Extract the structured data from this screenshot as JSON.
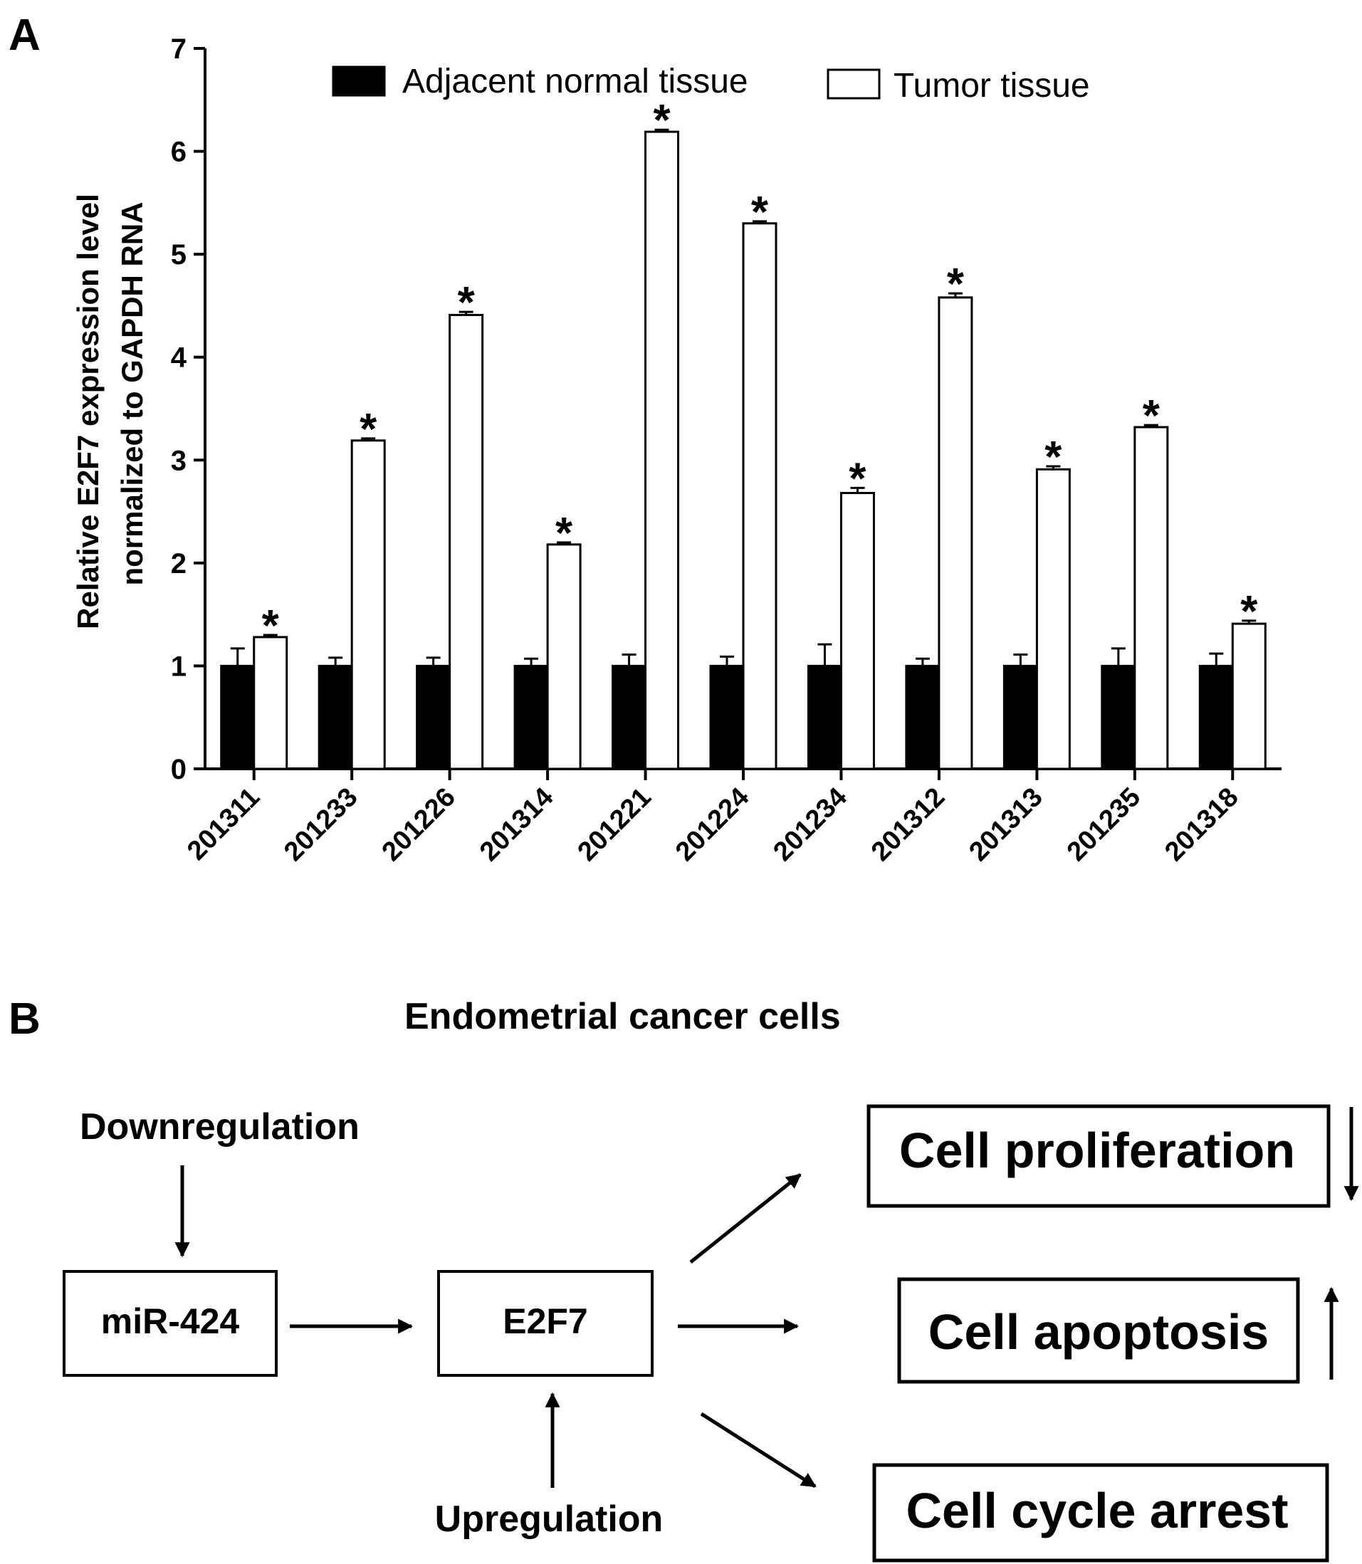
{
  "panel_a": {
    "label": "A",
    "ylabel_line1": "Relative E2F7 expression level",
    "ylabel_line2": "normalized to GAPDH RNA",
    "yticks": [
      "0",
      "1",
      "2",
      "3",
      "4",
      "5",
      "6",
      "7"
    ],
    "legend": [
      {
        "label": "Adjacent normal tissue",
        "fill": "#000000"
      },
      {
        "label": "Tumor tissue",
        "fill": "#ffffff"
      }
    ],
    "significance_mark": "*"
  },
  "chart_data": {
    "type": "bar",
    "ylim": [
      0,
      7
    ],
    "grid": false,
    "legend_position": "top",
    "categories": [
      "201311",
      "201233",
      "201226",
      "201314",
      "201221",
      "201224",
      "201234",
      "201312",
      "201313",
      "201235",
      "201318"
    ],
    "series": [
      {
        "name": "Adjacent normal tissue",
        "color": "#000000",
        "values": [
          1,
          1,
          1,
          1,
          1,
          1,
          1,
          1,
          1,
          1,
          1
        ],
        "errors": [
          0.17,
          0.08,
          0.08,
          0.07,
          0.11,
          0.09,
          0.21,
          0.07,
          0.11,
          0.17,
          0.12
        ]
      },
      {
        "name": "Tumor tissue",
        "color": "#ffffff",
        "values": [
          1.28,
          3.19,
          4.41,
          2.18,
          6.19,
          5.3,
          2.68,
          4.58,
          2.91,
          3.32,
          1.41
        ],
        "errors": [
          0.02,
          0.02,
          0.03,
          0.02,
          0.02,
          0.02,
          0.05,
          0.04,
          0.03,
          0.02,
          0.03
        ]
      }
    ],
    "annotations": [
      "*",
      "*",
      "*",
      "*",
      "*",
      "*",
      "*",
      "*",
      "*",
      "*",
      "*"
    ]
  },
  "panel_b": {
    "label": "B",
    "title": "Endometrial cancer cells",
    "downregulation": "Downregulation",
    "upregulation": "Upregulation",
    "mir_box": "miR-424",
    "e2f7_box": "E2F7",
    "outcomes": [
      {
        "label": "Cell proliferation",
        "direction": "down"
      },
      {
        "label": "Cell apoptosis",
        "direction": "up"
      },
      {
        "label": "Cell cycle arrest",
        "direction": "none"
      }
    ]
  }
}
